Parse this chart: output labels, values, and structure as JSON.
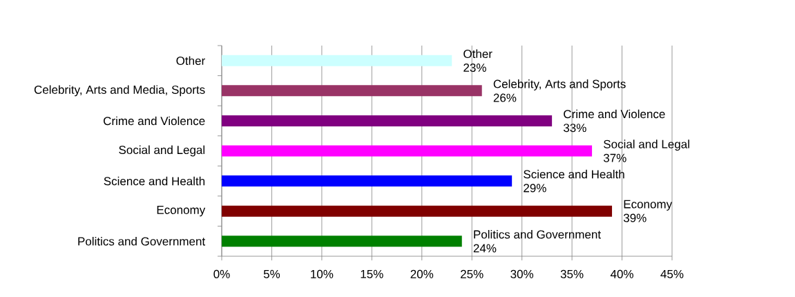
{
  "chart_data": {
    "type": "bar",
    "orientation": "horizontal",
    "categories": [
      "Other",
      "Celebrity, Arts and Media, Sports",
      "Crime and Violence",
      "Social and Legal",
      "Science and Health",
      "Economy",
      "Politics and Government"
    ],
    "values": [
      23,
      26,
      33,
      37,
      29,
      39,
      24
    ],
    "colors": [
      "#ccffff",
      "#993366",
      "#800080",
      "#ff00ff",
      "#0000ff",
      "#800000",
      "#008000"
    ],
    "value_labels": [
      "23%",
      "26%",
      "33%",
      "37%",
      "29%",
      "39%",
      "24%"
    ],
    "annotations": [
      {
        "text": "Other",
        "x": 23,
        "y": "Other"
      },
      {
        "text": "Celebrity, Arts and Sports",
        "x": 26,
        "y": "Celebrity, Arts and Media, Sports"
      },
      {
        "text": "Crime and Violence",
        "x": 33,
        "y": "Crime and Violence"
      },
      {
        "text": "Social and Legal",
        "x": 37,
        "y": "Social and Legal"
      },
      {
        "text": "Science and Health",
        "x": 29,
        "y": "Science and Health"
      },
      {
        "text": "Economy",
        "x": 39,
        "y": "Economy"
      },
      {
        "text": "Politics and Government",
        "x": 24,
        "y": "Politics and Government"
      }
    ],
    "xlim": [
      0,
      45
    ],
    "xticks": [
      {
        "value": 0,
        "label": "0%"
      },
      {
        "value": 5,
        "label": "5%"
      },
      {
        "value": 10,
        "label": "10%"
      },
      {
        "value": 15,
        "label": "15%"
      },
      {
        "value": 20,
        "label": "20%"
      },
      {
        "value": 25,
        "label": "25%"
      },
      {
        "value": 30,
        "label": "30%"
      },
      {
        "value": 35,
        "label": "35%"
      },
      {
        "value": 40,
        "label": "40%"
      },
      {
        "value": 45,
        "label": "45%"
      }
    ],
    "grid": "x"
  }
}
